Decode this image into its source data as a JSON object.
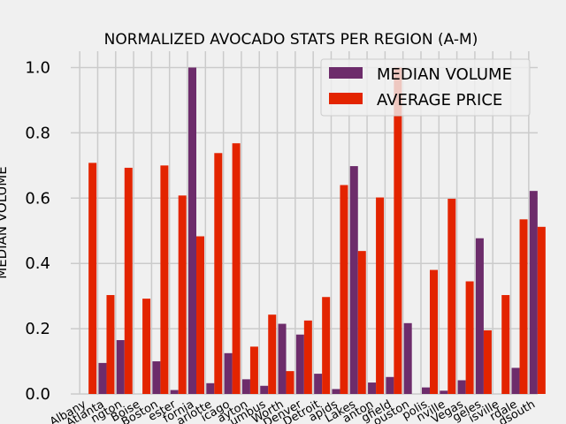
{
  "chart_data": {
    "type": "bar",
    "title": "NORMALIZED AVOCADO STATS PER REGION (A-M)",
    "xlabel": "",
    "ylabel": "MEDIAN VOLUME",
    "ylim": [
      0,
      1.05
    ],
    "yticks": [
      0.0,
      0.2,
      0.4,
      0.6,
      0.8,
      1.0
    ],
    "ytick_labels": [
      "0.0",
      "0.2",
      "0.4",
      "0.6",
      "0.8",
      "1.0"
    ],
    "grid": true,
    "legend_position": "top-right",
    "categories": [
      "Albany",
      "Atlanta",
      "BaltimoreWashington",
      "Boise",
      "Boston",
      "BuffaloRochester",
      "California",
      "Charlotte",
      "Chicago",
      "CincinnatiDayton",
      "Columbus",
      "DallasFtWorth",
      "Denver",
      "Detroit",
      "GrandRapids",
      "GreatLakes",
      "HarrisburgScranton",
      "HartfordSpringfield",
      "Houston",
      "Indianapolis",
      "Jacksonville",
      "LasVegas",
      "LosAngeles",
      "Louisville",
      "MiamiFtLauderdale",
      "Midsouth"
    ],
    "tick_labels": [
      "Albany",
      "Atlanta",
      "ngton",
      "Boise",
      "Boston",
      "ester",
      "fornia",
      "arlotte",
      "icago",
      "ayton",
      "umbus",
      "Worth",
      "Denver",
      "Detroit",
      "apids",
      "Lakes",
      "anton",
      "gfield",
      "ouston",
      "polis",
      "nville",
      "Vegas",
      "geles",
      "isville",
      "rdale",
      "dsouth"
    ],
    "series": [
      {
        "name": "MEDIAN VOLUME",
        "color": "#6d2c6b",
        "values": [
          0.0,
          0.095,
          0.165,
          0.0,
          0.1,
          0.012,
          1.0,
          0.033,
          0.125,
          0.045,
          0.025,
          0.215,
          0.182,
          0.062,
          0.015,
          0.698,
          0.035,
          0.052,
          0.217,
          0.02,
          0.01,
          0.042,
          0.477,
          0.0,
          0.08,
          0.622
        ]
      },
      {
        "name": "AVERAGE PRICE",
        "color": "#e32400",
        "values": [
          0.708,
          0.303,
          0.693,
          0.292,
          0.7,
          0.608,
          0.483,
          0.738,
          0.768,
          0.145,
          0.243,
          0.07,
          0.225,
          0.297,
          0.64,
          0.438,
          0.602,
          1.0,
          0.0,
          0.38,
          0.598,
          0.345,
          0.195,
          0.303,
          0.535,
          0.512
        ]
      }
    ]
  }
}
